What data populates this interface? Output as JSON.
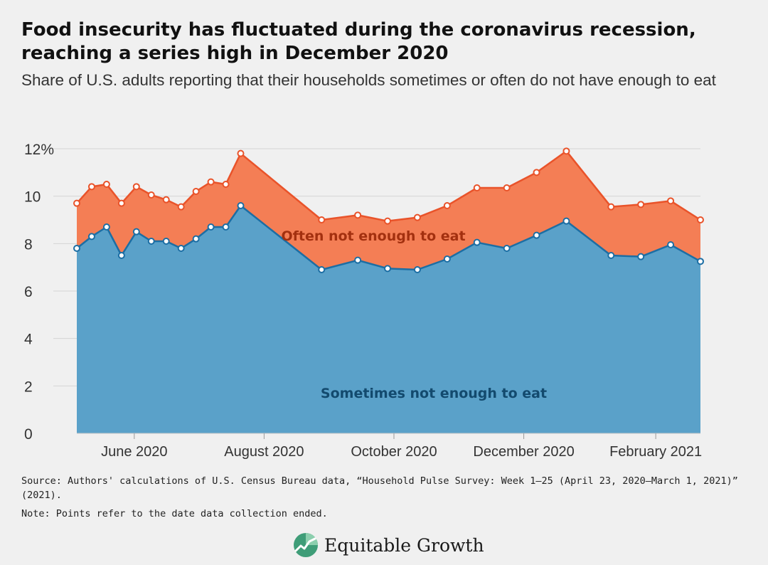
{
  "header": {
    "title": "Food insecurity has fluctuated during the coronavirus recession, reaching a series high in December 2020",
    "subtitle": "Share of U.S. adults reporting that their households sometimes or often do not have enough to eat"
  },
  "footer": {
    "source": "Source: Authors' calculations of U.S. Census Bureau data, “Household Pulse Survey: Week 1–25 (April 23, 2020–March 1, 2021)” (2021).",
    "note": "Note: Points refer to the date data collection ended.",
    "brand": "Equitable Growth"
  },
  "chart_data": {
    "type": "area",
    "stacked": true,
    "x_type": "date",
    "x": [
      "2020-05-05",
      "2020-05-12",
      "2020-05-19",
      "2020-05-26",
      "2020-06-02",
      "2020-06-09",
      "2020-06-16",
      "2020-06-23",
      "2020-06-30",
      "2020-07-07",
      "2020-07-14",
      "2020-07-21",
      "2020-08-28",
      "2020-09-14",
      "2020-09-28",
      "2020-10-12",
      "2020-10-26",
      "2020-11-09",
      "2020-11-23",
      "2020-12-07",
      "2020-12-21",
      "2021-01-11",
      "2021-01-25",
      "2021-02-08",
      "2021-02-22"
    ],
    "series": [
      {
        "name": "Sometimes not enough to eat",
        "color": "#5aa1c9",
        "line_color": "#1c6ea4",
        "label_color": "#134a6e",
        "values": [
          7.8,
          8.3,
          8.7,
          7.5,
          8.5,
          8.1,
          8.1,
          7.8,
          8.2,
          8.7,
          8.7,
          9.6,
          6.9,
          7.3,
          6.95,
          6.9,
          7.35,
          8.05,
          7.8,
          8.35,
          8.95,
          7.5,
          7.45,
          7.95,
          7.25
        ]
      },
      {
        "name": "Often not enough to eat",
        "color": "#f47e55",
        "line_color": "#e9532a",
        "label_color": "#a3300f",
        "values": [
          1.9,
          2.1,
          1.8,
          2.2,
          1.9,
          1.95,
          1.75,
          1.75,
          2.0,
          1.9,
          1.8,
          2.2,
          2.1,
          1.9,
          2.0,
          2.2,
          2.25,
          2.3,
          2.55,
          2.65,
          2.95,
          2.05,
          2.2,
          1.85,
          1.75
        ]
      }
    ],
    "totals": [
      9.7,
      10.4,
      10.5,
      9.7,
      10.4,
      10.05,
      9.85,
      9.55,
      10.2,
      10.6,
      10.5,
      11.8,
      9.0,
      9.2,
      8.95,
      9.1,
      9.6,
      10.35,
      10.35,
      11.0,
      11.9,
      9.55,
      9.65,
      9.8,
      9.0
    ],
    "ylim": [
      0,
      12
    ],
    "y_ticks": [
      0,
      2,
      4,
      6,
      8,
      10,
      12
    ],
    "y_tick_labels": [
      "0",
      "2",
      "4",
      "6",
      "8",
      "10",
      "12%"
    ],
    "x_ticks": [
      "2020-06-01",
      "2020-08-01",
      "2020-10-01",
      "2020-12-01",
      "2021-02-01"
    ],
    "x_tick_labels": [
      "June 2020",
      "August 2020",
      "October 2020",
      "December 2020",
      "February 2021"
    ],
    "grid": "horizontal",
    "legend": "inline labels"
  }
}
